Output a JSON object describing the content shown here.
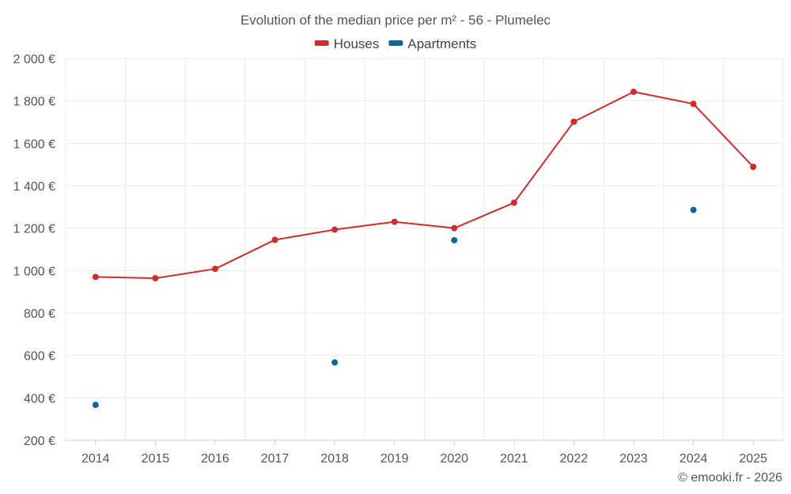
{
  "chart_data": {
    "type": "line",
    "title": "Evolution of the median price per m² - 56 - Plumelec",
    "xlabel": "",
    "ylabel": "",
    "categories": [
      "2014",
      "2015",
      "2016",
      "2017",
      "2018",
      "2019",
      "2020",
      "2021",
      "2022",
      "2023",
      "2024",
      "2025"
    ],
    "ylim": [
      200,
      2000
    ],
    "yticks": [
      200,
      400,
      600,
      800,
      1000,
      1200,
      1400,
      1600,
      1800,
      2000
    ],
    "ytick_labels": [
      "200 €",
      "400 €",
      "600 €",
      "800 €",
      "1 000 €",
      "1 200 €",
      "1 400 €",
      "1 600 €",
      "1 800 €",
      "2 000 €"
    ],
    "grid": true,
    "legend_position": "top-center",
    "series": [
      {
        "name": "Houses",
        "color": "#d32a2a",
        "style": "line-with-markers",
        "values": [
          970,
          964,
          1008,
          1145,
          1193,
          1230,
          1200,
          1320,
          1702,
          1843,
          1786,
          1489
        ]
      },
      {
        "name": "Apartments",
        "color": "#0e6596",
        "style": "markers-only",
        "values": [
          367,
          null,
          null,
          null,
          567,
          null,
          1143,
          null,
          null,
          null,
          1286,
          null
        ]
      }
    ],
    "credit": "© emooki.fr - 2026"
  }
}
